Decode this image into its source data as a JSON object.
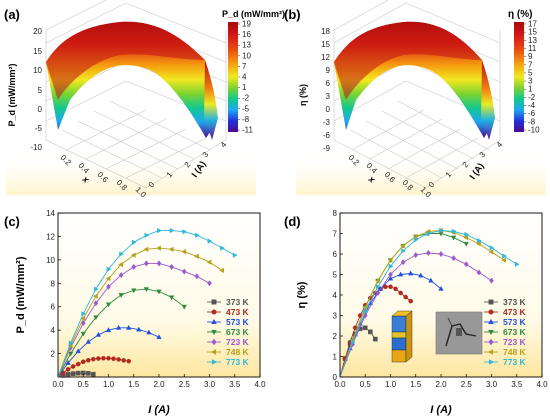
{
  "colors": {
    "temperatures": [
      "#555555",
      "#b02a20",
      "#2050e0",
      "#2e8b3e",
      "#9b59d0",
      "#b8a01a",
      "#2eb8d8"
    ],
    "colormap": [
      "#4b0a8f",
      "#2030d8",
      "#1ea8f0",
      "#14c88c",
      "#7cd430",
      "#f2e820",
      "#f5a010",
      "#ea4a12",
      "#d41818",
      "#a80808"
    ]
  },
  "inset": {
    "device_description": "stacked thermoelectric leg module",
    "photo_description": "fabricated device photograph"
  },
  "chart_data": [
    {
      "panel": "(a)",
      "type": "surface3d",
      "x_axis_label": "x",
      "y_axis_label": "I (A)",
      "z_axis_label": "P_d (mW/mm²)",
      "z_ticks": [
        "20",
        "15",
        "10",
        "5",
        "0",
        "-5",
        "-10"
      ],
      "x_ticks": [
        "0.2",
        "0.4",
        "0.6",
        "0.8",
        "1.0"
      ],
      "y_ticks": [
        "0",
        "1",
        "2",
        "3",
        "4"
      ],
      "colorbar_title": "P_d (mW/mm²)",
      "colorbar_ticks": [
        "19",
        "16",
        "13",
        "10",
        "7",
        "4",
        "1",
        "-2",
        "-5",
        "-8",
        "-11"
      ],
      "colorbar_range": [
        -11,
        19
      ]
    },
    {
      "panel": "(b)",
      "type": "surface3d",
      "x_axis_label": "x",
      "y_axis_label": "I (A)",
      "z_axis_label": "η (%)",
      "z_ticks": [
        "18",
        "15",
        "12",
        "9",
        "6",
        "3",
        "0",
        "-3",
        "-6",
        "-9"
      ],
      "x_ticks": [
        "0.2",
        "0.4",
        "0.6",
        "0.8",
        "1.0"
      ],
      "y_ticks": [
        "0",
        "1",
        "2",
        "3",
        "4"
      ],
      "colorbar_title": "η (%)",
      "colorbar_ticks": [
        "17",
        "15",
        "13",
        "11",
        "9",
        "7",
        "5",
        "3",
        "1",
        "-2",
        "-4",
        "-6",
        "-8",
        "-10"
      ],
      "colorbar_range": [
        -10,
        17
      ]
    },
    {
      "panel": "(c)",
      "type": "line",
      "xlabel": "I (A)",
      "ylabel": "P_d (mW/mm²)",
      "xlim": [
        0,
        4.0
      ],
      "ylim": [
        0,
        14
      ],
      "x_ticks": [
        "0.0",
        "0.5",
        "1.0",
        "1.5",
        "2.0",
        "2.5",
        "3.0",
        "3.5",
        "4.0"
      ],
      "y_ticks": [
        "2",
        "4",
        "6",
        "8",
        "10",
        "12",
        "14"
      ],
      "legend_position": "lower-right",
      "series": [
        {
          "name": "373 K",
          "marker": "square",
          "x": [
            0,
            0.1,
            0.2,
            0.3,
            0.4,
            0.5,
            0.6,
            0.7
          ],
          "y": [
            0,
            0.12,
            0.22,
            0.29,
            0.33,
            0.34,
            0.31,
            0.24
          ]
        },
        {
          "name": "473 K",
          "marker": "circle",
          "x": [
            0,
            0.1,
            0.2,
            0.3,
            0.4,
            0.5,
            0.6,
            0.7,
            0.8,
            0.9,
            1.0,
            1.1,
            1.2,
            1.3,
            1.4
          ],
          "y": [
            0,
            0.35,
            0.65,
            0.9,
            1.1,
            1.3,
            1.43,
            1.52,
            1.58,
            1.6,
            1.6,
            1.56,
            1.5,
            1.42,
            1.35
          ]
        },
        {
          "name": "573 K",
          "marker": "triangle-up",
          "x": [
            0,
            0.2,
            0.4,
            0.6,
            0.8,
            1.0,
            1.2,
            1.4,
            1.6,
            1.8,
            2.0
          ],
          "y": [
            0,
            1.2,
            2.2,
            3.0,
            3.6,
            4.0,
            4.2,
            4.2,
            4.05,
            3.8,
            3.4
          ]
        },
        {
          "name": "673 K",
          "marker": "triangle-down",
          "x": [
            0,
            0.25,
            0.5,
            0.75,
            1.0,
            1.25,
            1.5,
            1.75,
            2.0,
            2.25,
            2.5
          ],
          "y": [
            0,
            2.0,
            3.7,
            5.1,
            6.2,
            7.0,
            7.4,
            7.5,
            7.3,
            6.8,
            6.0
          ]
        },
        {
          "name": "723 K",
          "marker": "diamond",
          "x": [
            0,
            0.25,
            0.5,
            0.75,
            1.0,
            1.25,
            1.5,
            1.75,
            2.0,
            2.25,
            2.5,
            2.75,
            3.0
          ],
          "y": [
            0,
            2.5,
            4.6,
            6.3,
            7.7,
            8.7,
            9.4,
            9.7,
            9.7,
            9.4,
            9.0,
            8.6,
            8.0
          ]
        },
        {
          "name": "748 K",
          "marker": "triangle-left",
          "x": [
            0,
            0.25,
            0.5,
            0.75,
            1.0,
            1.25,
            1.5,
            1.75,
            2.0,
            2.25,
            2.5,
            2.75,
            3.0,
            3.25
          ],
          "y": [
            0,
            2.7,
            5.0,
            6.9,
            8.4,
            9.6,
            10.4,
            10.9,
            11.0,
            10.9,
            10.7,
            10.3,
            9.8,
            9.1
          ]
        },
        {
          "name": "773 K",
          "marker": "triangle-right",
          "x": [
            0,
            0.25,
            0.5,
            0.75,
            1.0,
            1.25,
            1.5,
            1.75,
            2.0,
            2.25,
            2.5,
            2.75,
            3.0,
            3.25,
            3.5
          ],
          "y": [
            0,
            2.9,
            5.4,
            7.5,
            9.2,
            10.5,
            11.5,
            12.1,
            12.5,
            12.5,
            12.4,
            12.1,
            11.6,
            11.0,
            10.4
          ]
        }
      ]
    },
    {
      "panel": "(d)",
      "type": "line",
      "xlabel": "I (A)",
      "ylabel": "η (%)",
      "xlim": [
        0,
        4.0
      ],
      "ylim": [
        0,
        8
      ],
      "x_ticks": [
        "0.0",
        "0.5",
        "1.0",
        "1.5",
        "2.0",
        "2.5",
        "3.0",
        "3.5",
        "4.0"
      ],
      "y_ticks": [
        "0",
        "1",
        "2",
        "3",
        "4",
        "5",
        "6",
        "7",
        "8"
      ],
      "legend_position": "lower-right",
      "series": [
        {
          "name": "373 K",
          "marker": "square",
          "x": [
            0,
            0.1,
            0.2,
            0.3,
            0.4,
            0.5,
            0.6,
            0.7
          ],
          "y": [
            0,
            0.9,
            1.6,
            2.1,
            2.35,
            2.4,
            2.2,
            1.85
          ]
        },
        {
          "name": "473 K",
          "marker": "circle",
          "x": [
            0,
            0.1,
            0.2,
            0.3,
            0.4,
            0.5,
            0.6,
            0.7,
            0.8,
            0.9,
            1.0,
            1.1,
            1.2,
            1.3,
            1.4
          ],
          "y": [
            0,
            0.9,
            1.7,
            2.4,
            3.0,
            3.5,
            3.85,
            4.1,
            4.3,
            4.4,
            4.4,
            4.3,
            4.1,
            3.9,
            3.7
          ]
        },
        {
          "name": "573 K",
          "marker": "triangle-up",
          "x": [
            0,
            0.2,
            0.4,
            0.6,
            0.8,
            1.0,
            1.2,
            1.4,
            1.6,
            1.8,
            2.0
          ],
          "y": [
            0,
            1.4,
            2.6,
            3.6,
            4.3,
            4.8,
            5.0,
            5.05,
            4.95,
            4.7,
            4.3
          ]
        },
        {
          "name": "673 K",
          "marker": "triangle-down",
          "x": [
            0,
            0.25,
            0.5,
            0.75,
            1.0,
            1.25,
            1.5,
            1.75,
            2.0,
            2.25,
            2.5
          ],
          "y": [
            0,
            1.8,
            3.4,
            4.7,
            5.7,
            6.4,
            6.85,
            7.0,
            7.0,
            6.8,
            6.5
          ]
        },
        {
          "name": "723 K",
          "marker": "diamond",
          "x": [
            0,
            0.25,
            0.5,
            0.75,
            1.0,
            1.25,
            1.5,
            1.75,
            2.0,
            2.25,
            2.5,
            2.75,
            3.0
          ],
          "y": [
            0,
            1.6,
            3.0,
            4.1,
            5.0,
            5.6,
            5.95,
            6.05,
            6.0,
            5.8,
            5.5,
            5.1,
            4.7
          ]
        },
        {
          "name": "748 K",
          "marker": "triangle-left",
          "x": [
            0,
            0.25,
            0.5,
            0.75,
            1.0,
            1.25,
            1.5,
            1.75,
            2.0,
            2.25,
            2.5,
            2.75,
            3.0,
            3.25
          ],
          "y": [
            0,
            1.8,
            3.4,
            4.7,
            5.7,
            6.4,
            6.85,
            7.1,
            7.15,
            7.05,
            6.8,
            6.5,
            6.1,
            5.7
          ]
        },
        {
          "name": "773 K",
          "marker": "triangle-right",
          "x": [
            0,
            0.25,
            0.5,
            0.75,
            1.0,
            1.25,
            1.5,
            1.75,
            2.0,
            2.25,
            2.5,
            2.75,
            3.0,
            3.25,
            3.5
          ],
          "y": [
            0,
            1.7,
            3.2,
            4.4,
            5.4,
            6.15,
            6.7,
            7.0,
            7.15,
            7.1,
            6.95,
            6.65,
            6.3,
            5.9,
            5.5
          ]
        }
      ]
    }
  ]
}
